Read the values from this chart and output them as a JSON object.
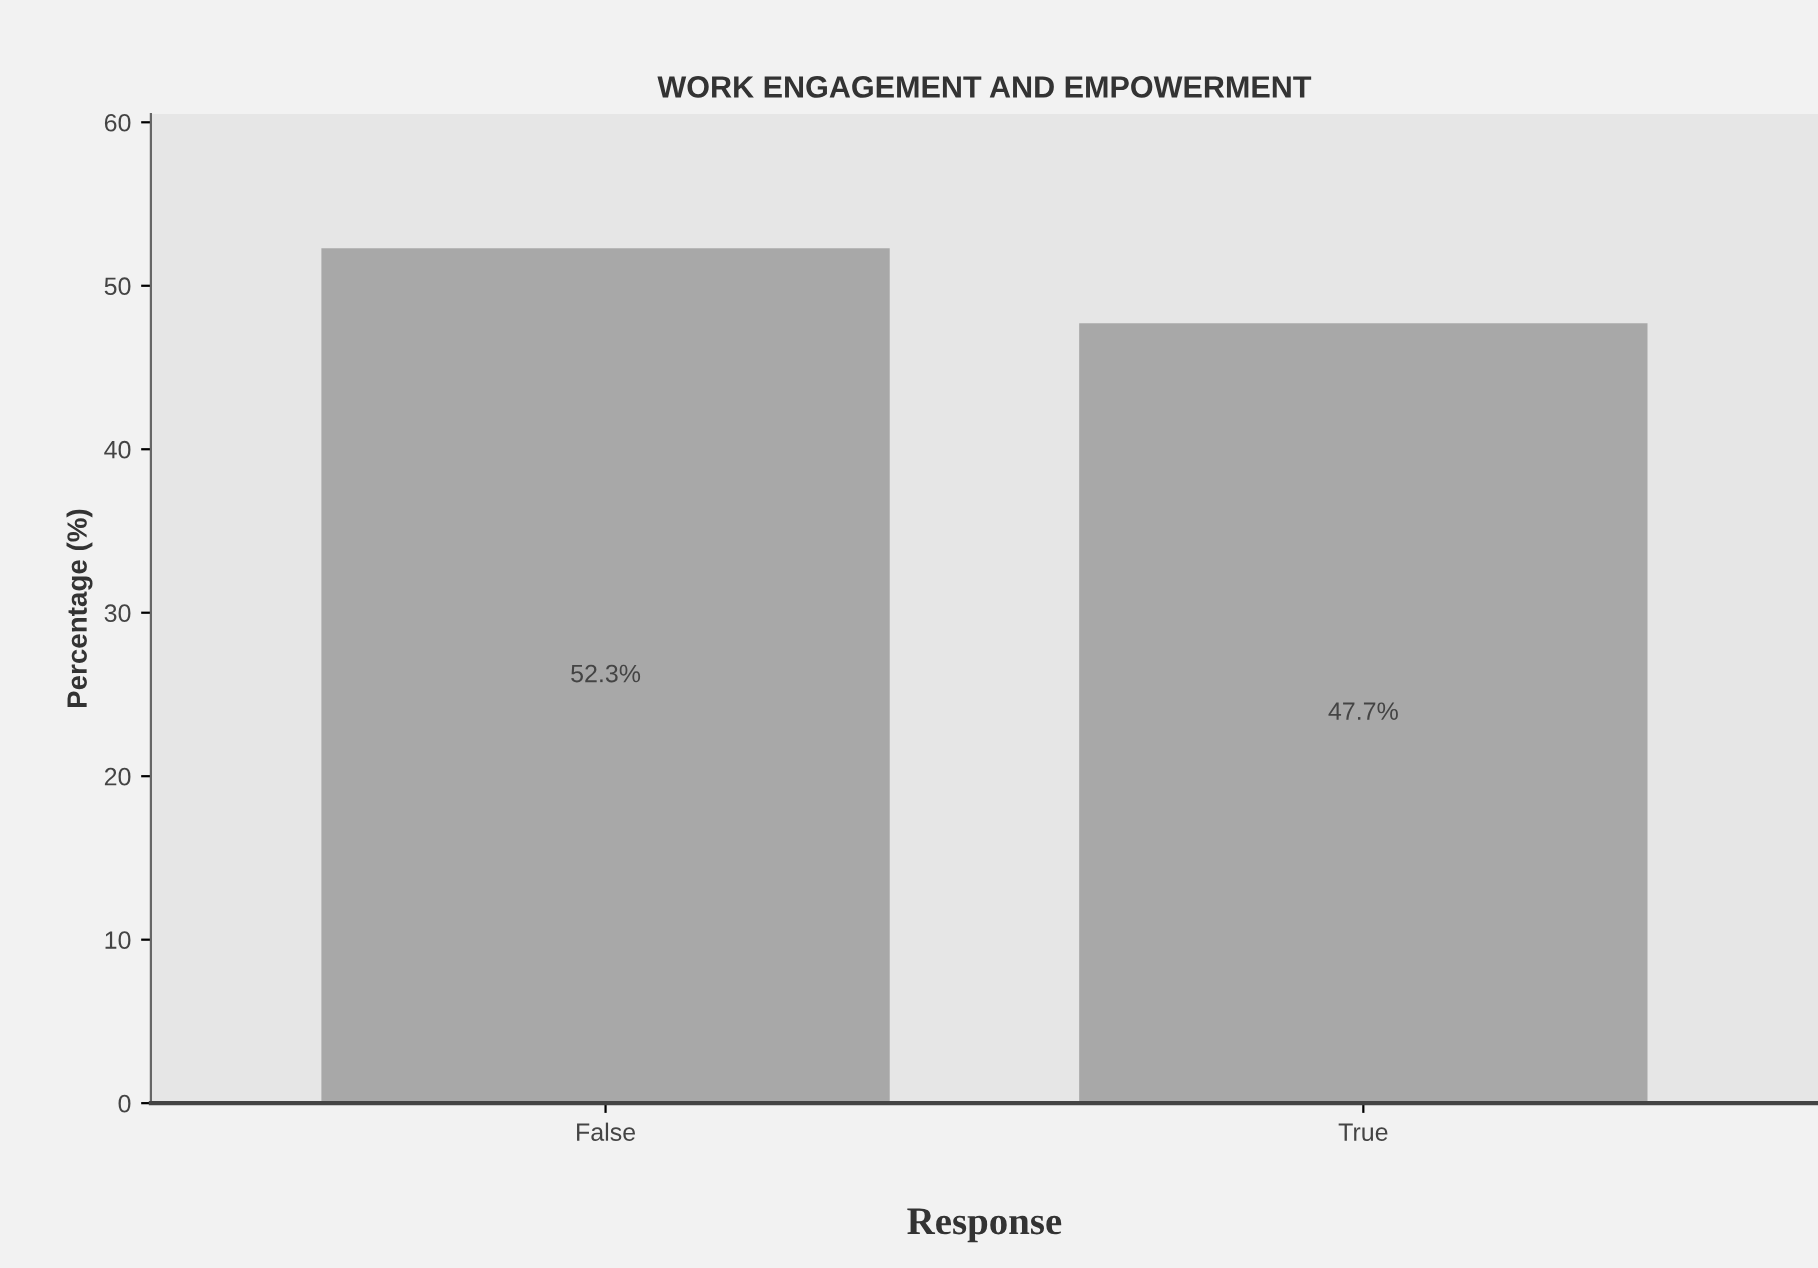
{
  "chart_data": {
    "type": "bar",
    "title": "WORK ENGAGEMENT AND EMPOWERMENT",
    "xlabel": "Response",
    "ylabel": "Percentage (%)",
    "categories": [
      "False",
      "True"
    ],
    "values": [
      52.3,
      47.7
    ],
    "value_labels": [
      "52.3%",
      "47.7%"
    ],
    "color": "#a8a8a8",
    "ylim": [
      0,
      60.5
    ],
    "yticks": [
      0,
      10,
      20,
      30,
      40,
      50,
      60
    ],
    "grid": false,
    "legend": false
  }
}
